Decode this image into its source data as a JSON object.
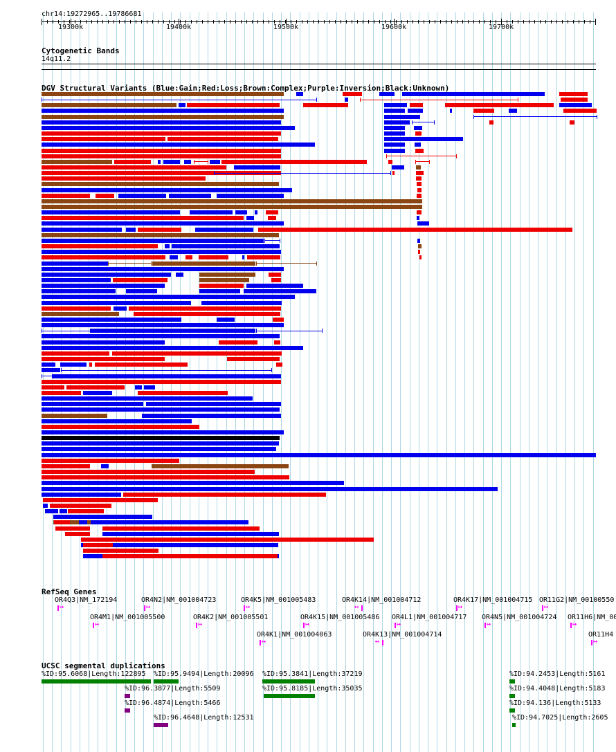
{
  "ruler": {
    "position": "chr14:19272965..19786681",
    "ticks": [
      "19300k",
      "19400k",
      "19500k",
      "19600k",
      "19700k"
    ]
  },
  "tracks": {
    "cytoband": {
      "title": "Cytogenetic Bands",
      "band": "14q11.2"
    },
    "dgv": {
      "title": "DGV Structural Variants (Blue:Gain;Red:Loss;Brown:Complex;Purple:Inversion;Black:Unknown)"
    },
    "refseq": {
      "title": "RefSeq Genes"
    },
    "segdup": {
      "title": "UCSC segmental duplications"
    }
  },
  "colors": {
    "gain": "#0000ee",
    "loss": "#ee0000",
    "complex": "#8b4513",
    "inversion": "#800080",
    "unknown": "#000000",
    "grid": "#add8e6",
    "gene": "#ff00ff",
    "segdup_high": "#008000",
    "segdup_mid": "#800080"
  },
  "genes": [
    {
      "label": "OR4Q3|NM_172194",
      "strand": "+"
    },
    {
      "label": "OR4N2|NM_001004723",
      "strand": "+"
    },
    {
      "label": "OR4K5|NM_001005483",
      "strand": "+"
    },
    {
      "label": "OR4K14|NM_001004712",
      "strand": "-"
    },
    {
      "label": "OR4K17|NM_001004715",
      "strand": "+"
    },
    {
      "label": "OR11G2|NM_00100550",
      "strand": "+"
    },
    {
      "label": "OR4M1|NM_001005500",
      "strand": "+"
    },
    {
      "label": "OR4K2|NM_001005501",
      "strand": "+"
    },
    {
      "label": "OR4K15|NM_001005486",
      "strand": "+"
    },
    {
      "label": "OR4L1|NM_001004717",
      "strand": "+"
    },
    {
      "label": "OR4N5|NM_001004724",
      "strand": "+"
    },
    {
      "label": "OR11H6|NM_00",
      "strand": "+"
    },
    {
      "label": "OR4K1|NM_001004063",
      "strand": "+"
    },
    {
      "label": "OR4K13|NM_001004714",
      "strand": "-"
    },
    {
      "label": "OR11H4",
      "strand": "+"
    }
  ],
  "segdups": [
    {
      "label": "%ID:95.6068|Length:122895"
    },
    {
      "label": "%ID:95.9494|Length:20096"
    },
    {
      "label": "%ID:95.3841|Length:37219"
    },
    {
      "label": "%ID:94.2453|Length:5161"
    },
    {
      "label": "%ID:96.3877|Length:5509"
    },
    {
      "label": "%ID:95.8185|Length:35035"
    },
    {
      "label": "%ID:94.4048|Length:5183"
    },
    {
      "label": "%ID:96.4874|Length:5466"
    },
    {
      "label": "%ID:94.136|Length:5133"
    },
    {
      "label": "%ID:96.4648|Length:12531"
    },
    {
      "label": "%ID:94.7025|Length:2605"
    }
  ]
}
